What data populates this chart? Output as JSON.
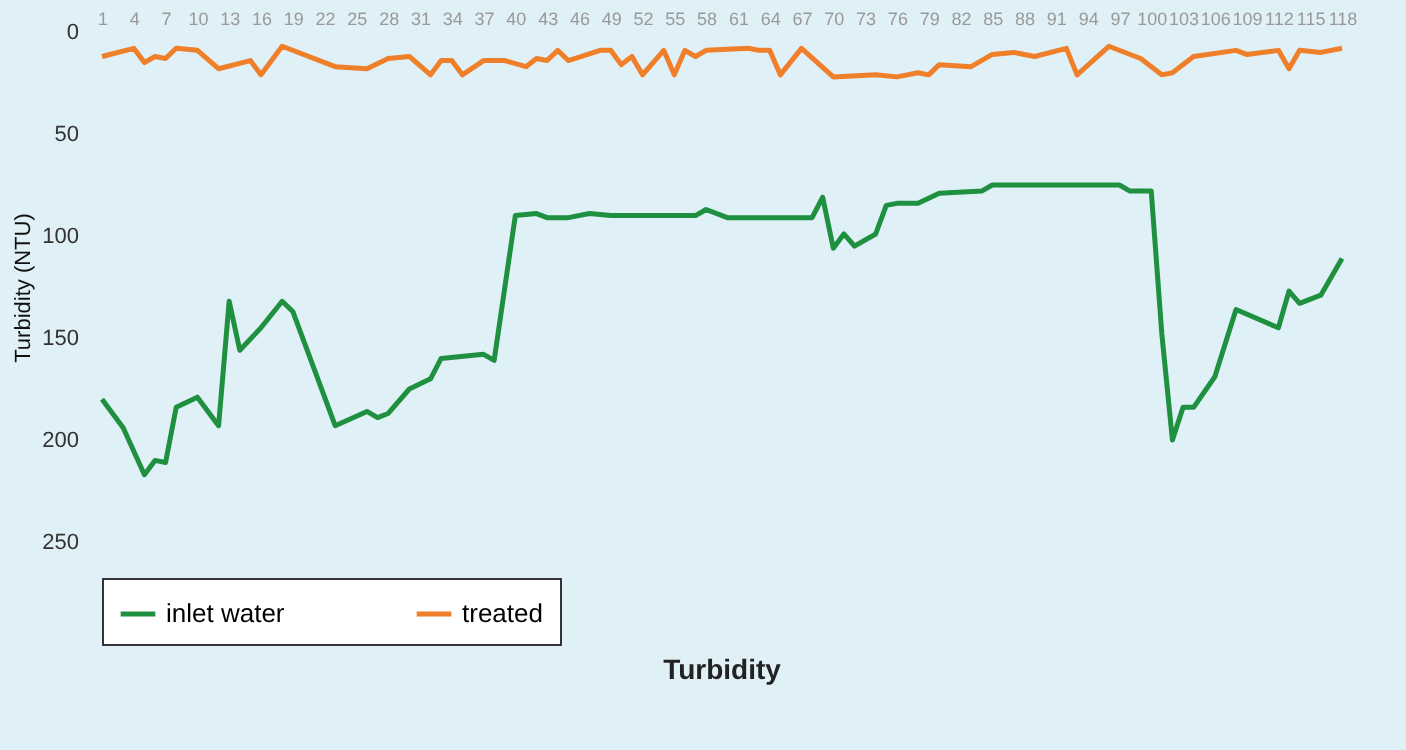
{
  "chart_data": {
    "type": "line",
    "title": "Turbidity",
    "ylabel": "Turbidity (NTU)",
    "xlim": [
      1,
      118
    ],
    "xticks": [
      1,
      4,
      7,
      10,
      13,
      16,
      19,
      22,
      25,
      28,
      31,
      34,
      37,
      40,
      43,
      46,
      49,
      52,
      55,
      58,
      61,
      64,
      67,
      70,
      73,
      76,
      79,
      82,
      85,
      88,
      91,
      94,
      97,
      100,
      103,
      106,
      109,
      112,
      115,
      118
    ],
    "ylim": [
      250,
      0
    ],
    "yticks": [
      0,
      50,
      100,
      150,
      200,
      250
    ],
    "grid": false,
    "legend": "bottom",
    "marker": "none",
    "series": [
      {
        "name": "inlet water",
        "color": "#1e9040",
        "x": [
          1,
          3,
          5,
          6,
          7,
          8,
          10,
          12,
          13,
          14,
          16,
          18,
          19,
          23,
          26,
          27,
          28,
          30,
          32,
          33,
          37,
          38,
          40,
          42,
          43,
          45,
          47,
          49,
          52,
          57,
          58,
          60,
          68,
          69,
          70,
          71,
          72,
          74,
          75,
          76,
          78,
          80,
          84,
          85,
          97,
          98,
          100,
          101,
          102,
          103,
          104,
          106,
          108,
          112,
          113,
          114,
          116,
          118
        ],
        "values": [
          180,
          194,
          217,
          210,
          211,
          184,
          179,
          193,
          132,
          156,
          145,
          132,
          137,
          193,
          186,
          189,
          187,
          175,
          170,
          160,
          158,
          161,
          90,
          89,
          91,
          91,
          89,
          90,
          90,
          90,
          87,
          91,
          91,
          81,
          106,
          99,
          105,
          99,
          85,
          84,
          84,
          79,
          78,
          75,
          75,
          78,
          78,
          148,
          200,
          184,
          184,
          169,
          136,
          145,
          127,
          133,
          129,
          111
        ]
      },
      {
        "name": "treated",
        "color": "#f07f2a",
        "x": [
          1,
          4,
          5,
          6,
          7,
          8,
          10,
          12,
          15,
          16,
          18,
          23,
          26,
          28,
          30,
          32,
          33,
          34,
          35,
          37,
          39,
          41,
          42,
          43,
          44,
          45,
          48,
          49,
          50,
          51,
          52,
          54,
          55,
          56,
          57,
          58,
          62,
          63,
          64,
          65,
          67,
          70,
          74,
          76,
          78,
          79,
          80,
          83,
          85,
          87,
          89,
          92,
          93,
          96,
          99,
          101,
          102,
          104,
          108,
          109,
          112,
          113,
          114,
          116,
          118
        ],
        "values": [
          12,
          8,
          15,
          12,
          13,
          8,
          9,
          18,
          14,
          21,
          7,
          17,
          18,
          13,
          12,
          21,
          14,
          14,
          21,
          14,
          14,
          17,
          13,
          14,
          9,
          14,
          9,
          9,
          16,
          12,
          21,
          9,
          21,
          9,
          12,
          9,
          8,
          9,
          9,
          21,
          8,
          22,
          21,
          22,
          20,
          21,
          16,
          17,
          11,
          10,
          12,
          8,
          21,
          7,
          13,
          21,
          20,
          12,
          9,
          11,
          9,
          18,
          9,
          10,
          8
        ]
      }
    ]
  }
}
